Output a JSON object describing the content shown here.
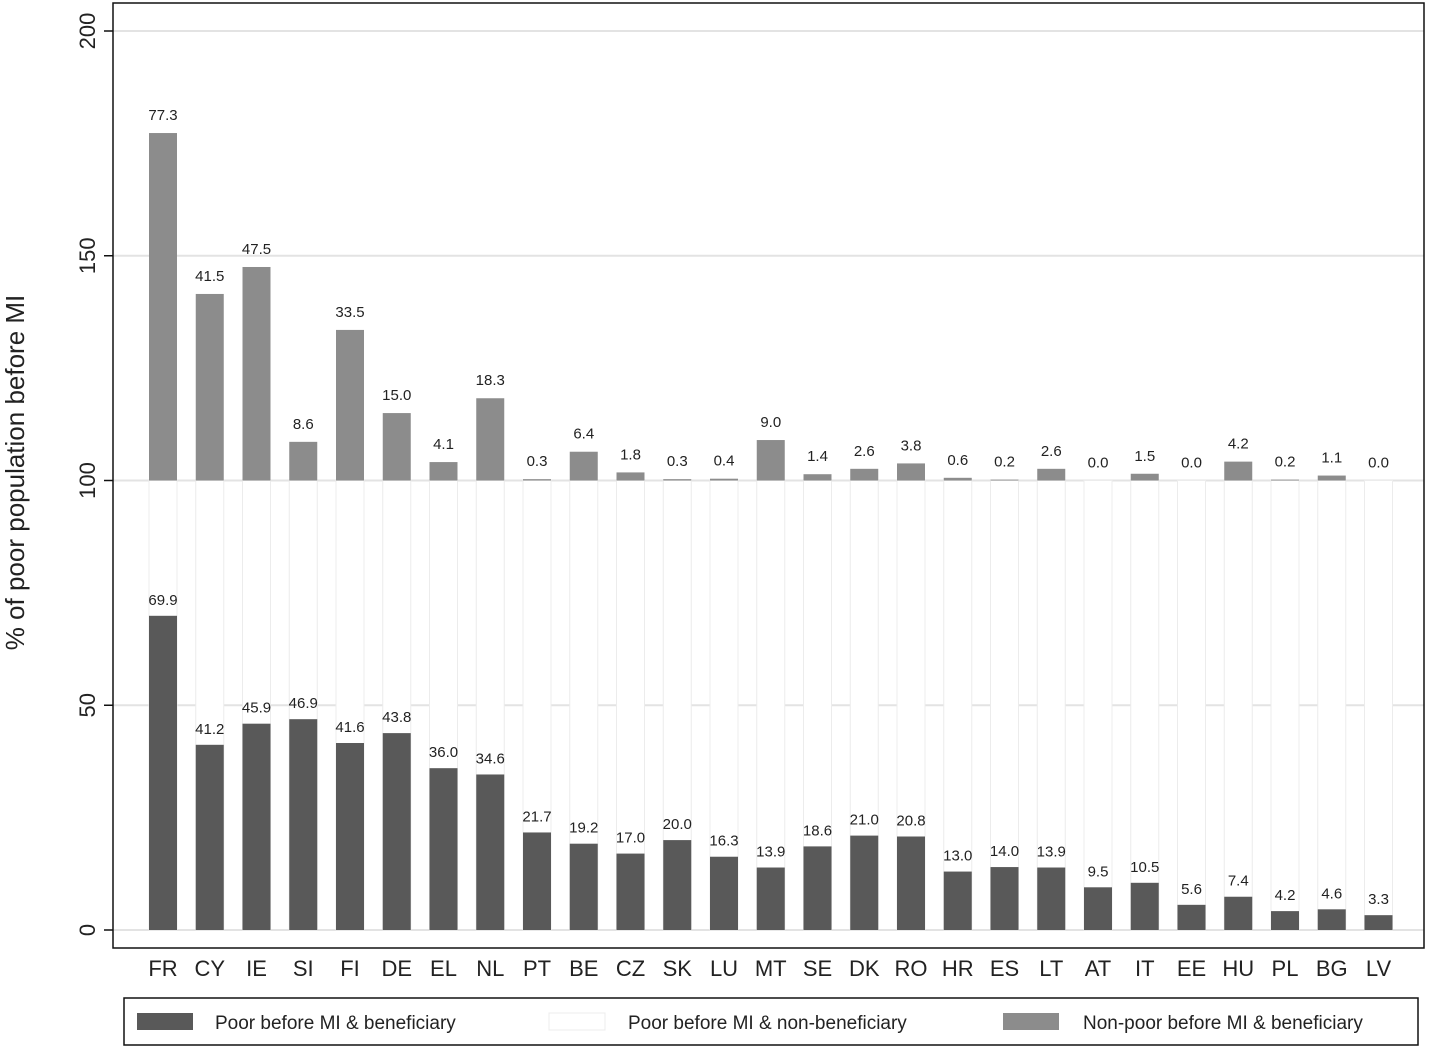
{
  "chart_data": {
    "type": "bar",
    "title": "",
    "xlabel": "",
    "ylabel": "% of poor population before MI",
    "ylim": [
      0,
      200
    ],
    "yticks": [
      "0",
      "50",
      "100",
      "150",
      "200"
    ],
    "grid": true,
    "legend_position": "bottom",
    "categories": [
      "FR",
      "CY",
      "IE",
      "SI",
      "FI",
      "DE",
      "EL",
      "NL",
      "PT",
      "BE",
      "CZ",
      "SK",
      "LU",
      "MT",
      "SE",
      "DK",
      "RO",
      "HR",
      "ES",
      "LT",
      "AT",
      "IT",
      "EE",
      "HU",
      "PL",
      "BG",
      "LV"
    ],
    "series": [
      {
        "name": "Poor before MI & beneficiary",
        "color": "#595959",
        "baseline": 0,
        "values": [
          69.9,
          41.2,
          45.9,
          46.9,
          41.6,
          43.8,
          36.0,
          34.6,
          21.7,
          19.2,
          17.0,
          20.0,
          16.3,
          13.9,
          18.6,
          21.0,
          20.8,
          13.0,
          14.0,
          13.9,
          9.5,
          10.5,
          5.6,
          7.4,
          4.2,
          4.6,
          3.3
        ],
        "labels": [
          "69.9",
          "41.2",
          "45.9",
          "46.9",
          "41.6",
          "43.8",
          "36.0",
          "34.6",
          "21.7",
          "19.2",
          "17.0",
          "20.0",
          "16.3",
          "13.9",
          "18.6",
          "21.0",
          "20.8",
          "13.0",
          "14.0",
          "13.9",
          "9.5",
          "10.5",
          "5.6",
          "7.4",
          "4.2",
          "4.6",
          "3.3"
        ]
      },
      {
        "name": "Poor before MI & non-beneficiary",
        "color": "#ffffff"
      },
      {
        "name": "Non-poor before MI & beneficiary",
        "color": "#8c8c8c",
        "baseline": 100,
        "values": [
          77.3,
          41.5,
          47.5,
          8.6,
          33.5,
          15.0,
          4.1,
          18.3,
          0.3,
          6.4,
          1.8,
          0.3,
          0.4,
          9.0,
          1.4,
          2.6,
          3.8,
          0.6,
          0.2,
          2.6,
          0.0,
          1.5,
          0.0,
          4.2,
          0.2,
          1.1,
          0.0
        ],
        "labels": [
          "77.3",
          "41.5",
          "47.5",
          "8.6",
          "33.5",
          "15.0",
          "4.1",
          "18.3",
          "0.3",
          "6.4",
          "1.8",
          "0.3",
          "0.4",
          "9.0",
          "1.4",
          "2.6",
          "3.8",
          "0.6",
          "0.2",
          "2.6",
          "0.0",
          "1.5",
          "0.0",
          "4.2",
          "0.2",
          "1.1",
          "0.0"
        ]
      }
    ]
  }
}
